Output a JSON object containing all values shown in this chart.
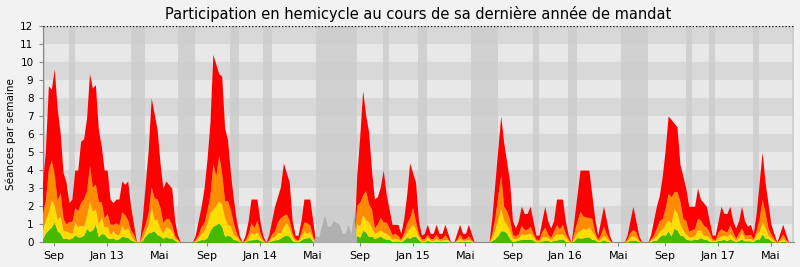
{
  "title": "Participation en hemicycle au cours de sa dernière année de mandat",
  "ylabel": "Séances par semaine",
  "ylim": [
    0,
    12
  ],
  "yticks": [
    0,
    1,
    2,
    3,
    4,
    5,
    6,
    7,
    8,
    9,
    10,
    11,
    12
  ],
  "background_color": "#f2f2f2",
  "dotted_line_y": 12,
  "colors": {
    "red": "#ff0000",
    "orange": "#ff8c00",
    "yellow": "#ffdd00",
    "green": "#44bb00",
    "gray": "#b0b0b0"
  },
  "tick_labels": [
    "Sep",
    "Jan 13",
    "Mai",
    "Sep",
    "Jan 14",
    "Mai",
    "Sep",
    "Jan 15",
    "Mai",
    "Sep",
    "Jan 16",
    "Mai",
    "Sep",
    "Jan 17",
    "Mai"
  ],
  "tick_positions": [
    4,
    22,
    40,
    56,
    74,
    92,
    108,
    126,
    144,
    160,
    178,
    196,
    212,
    230,
    248
  ],
  "n_weeks": 257,
  "h_stripe_colors": [
    "#e8e8e8",
    "#d8d8d8"
  ],
  "v_stripe_dark": "#cccccc",
  "v_stripe_light": "#e0e0e0"
}
